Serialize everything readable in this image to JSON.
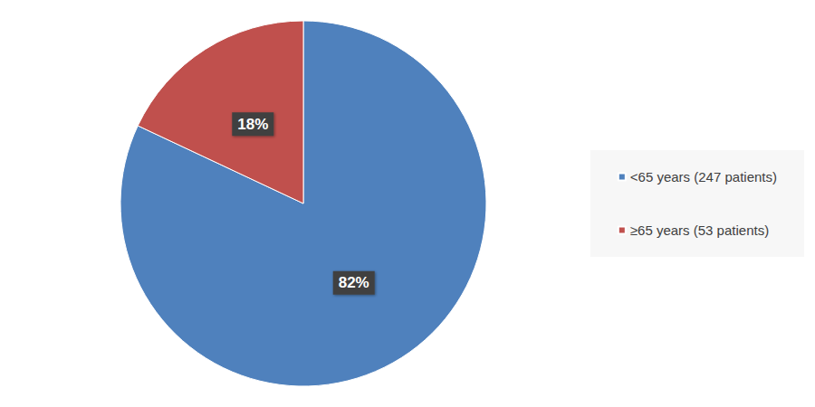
{
  "chart_data": {
    "type": "pie",
    "categories": [
      "<65 years (247 patients)",
      "≥65 years (53 patients)"
    ],
    "values": [
      82,
      18
    ],
    "value_labels": [
      "82%",
      "18%"
    ],
    "colors": [
      "#4f81bd",
      "#c0504d"
    ],
    "data_labels": true,
    "legend": "right"
  }
}
